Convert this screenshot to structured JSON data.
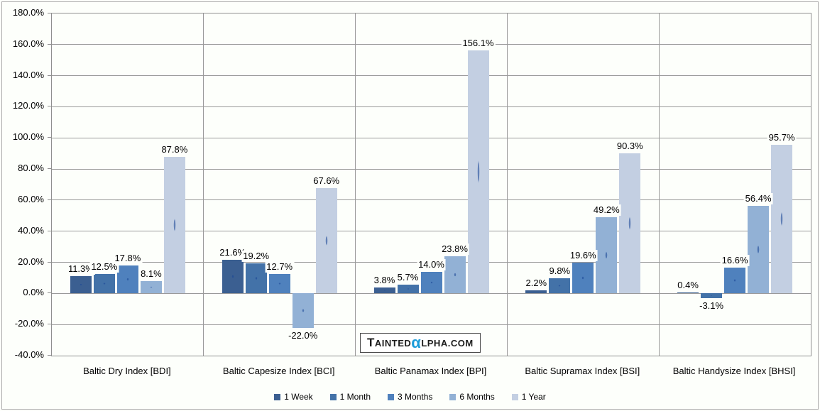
{
  "chart_data": {
    "type": "bar",
    "title": "",
    "xlabel": "",
    "ylabel": "",
    "ylim": [
      -40,
      180
    ],
    "y_ticks": [
      180,
      160,
      140,
      120,
      100,
      80,
      60,
      40,
      20,
      0,
      -20,
      -40
    ],
    "y_tick_labels": [
      "180.0%",
      "160.0%",
      "140.0%",
      "120.0%",
      "100.0%",
      "80.0%",
      "60.0%",
      "40.0%",
      "20.0%",
      "0.0%",
      "-20.0%",
      "-40.0%"
    ],
    "grid": true,
    "legend_position": "bottom",
    "categories": [
      "Baltic Dry Index [BDI]",
      "Baltic Capesize Index [BCI]",
      "Baltic Panamax Index [BPI]",
      "Baltic Supramax Index [BSI]",
      "Baltic Handysize Index [BHSI]"
    ],
    "series": [
      {
        "name": "1 Week",
        "color": "#3B5F91",
        "values": [
          11.3,
          21.6,
          3.8,
          2.2,
          0.4
        ],
        "labels": [
          "11.3%",
          "21.6%",
          "3.8%",
          "2.2%",
          "0.4%"
        ]
      },
      {
        "name": "1 Month",
        "color": "#4372A8",
        "values": [
          12.5,
          19.2,
          5.7,
          9.8,
          -3.1
        ],
        "labels": [
          "12.5%",
          "19.2%",
          "5.7%",
          "9.8%",
          "-3.1%"
        ]
      },
      {
        "name": "3 Months",
        "color": "#4F81BD",
        "values": [
          17.8,
          12.7,
          14.0,
          19.6,
          16.6
        ],
        "labels": [
          "17.8%",
          "12.7%",
          "14.0%",
          "19.6%",
          "16.6%"
        ]
      },
      {
        "name": "6 Months",
        "color": "#92B1D5",
        "values": [
          8.1,
          -22.0,
          23.8,
          49.2,
          56.4
        ],
        "labels": [
          "8.1%",
          "-22.0%",
          "23.8%",
          "49.2%",
          "56.4%"
        ]
      },
      {
        "name": "1 Year",
        "color": "#C3CFE2",
        "values": [
          87.8,
          67.6,
          156.1,
          90.3,
          95.7
        ],
        "labels": [
          "87.8%",
          "67.6%",
          "156.1%",
          "90.3%",
          "95.7%"
        ]
      }
    ]
  },
  "watermark": {
    "part1": "T",
    "part2": "AINTED",
    "alpha": "α",
    "alpha_color": "#1B9CD9",
    "part3": "LPHA.COM"
  },
  "colors": {
    "background": "#FDFFFB",
    "gridline": "#9A9A9A",
    "plot_border": "#8F8F8F",
    "text": "#000000"
  }
}
